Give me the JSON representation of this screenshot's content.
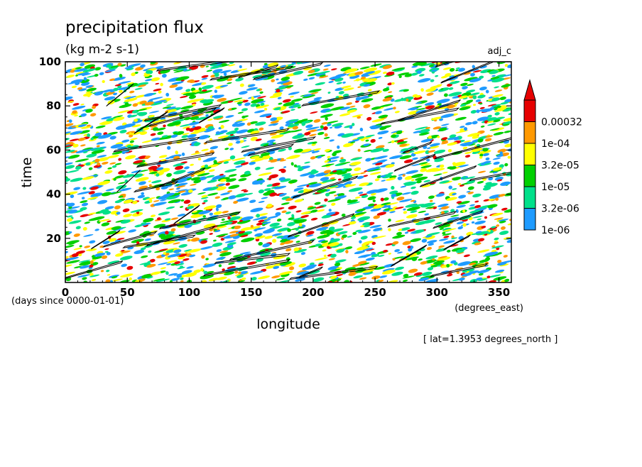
{
  "chart_data": {
    "type": "heatmap",
    "title": "precipitation flux",
    "subtitle": "(kg m-2 s-1)",
    "run_label": "adj_c",
    "xlabel": "longitude",
    "x_units": "(degrees_east)",
    "ylabel": "time",
    "y_units": "(days since 0000-01-01)",
    "footnote": "[ lat=1.3953 degrees_north ]",
    "xlim": [
      0,
      360
    ],
    "ylim": [
      0,
      100
    ],
    "x_ticks": [
      0,
      50,
      100,
      150,
      200,
      250,
      300,
      350
    ],
    "y_ticks": [
      20,
      40,
      60,
      80,
      100
    ],
    "colorbar": {
      "levels": [
        "1e-06",
        "3.2e-06",
        "1e-05",
        "3.2e-05",
        "1e-04",
        "0.00032"
      ],
      "colors": [
        "#1e9bff",
        "#00e08a",
        "#00d000",
        "#ffff00",
        "#ff9900",
        "#e60000"
      ],
      "extend": "max"
    },
    "contour_color": "#000000",
    "grid": false
  }
}
